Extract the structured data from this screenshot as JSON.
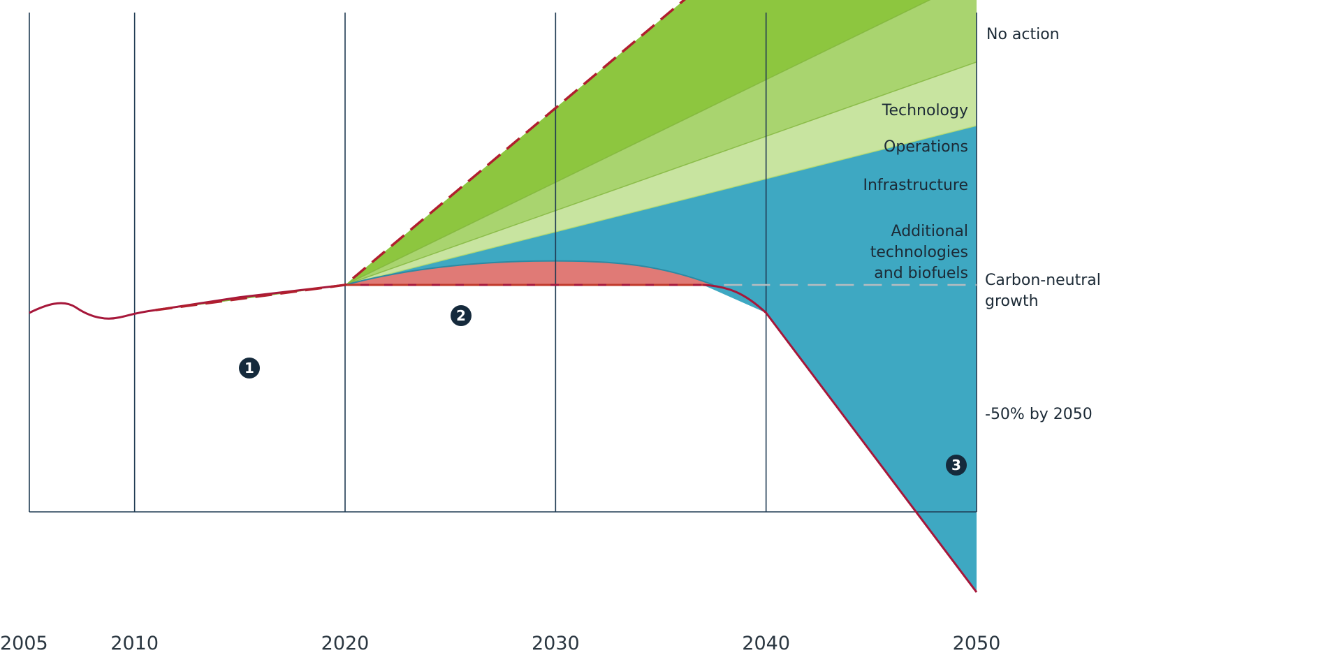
{
  "chart_data": {
    "type": "area",
    "x_ticks": [
      "2005",
      "2010",
      "2020",
      "2030",
      "2040",
      "2050"
    ],
    "xlim": [
      2005,
      2050
    ],
    "grid": "vertical lines at each tick",
    "series": [
      {
        "name": "No action",
        "color": "#b01e2e",
        "style": "dashed",
        "x": [
          2005,
          2010,
          2011,
          2020,
          2030,
          2040,
          2050
        ],
        "y": [
          100,
          100,
          100.5,
          105,
          134,
          167,
          200
        ]
      },
      {
        "name": "-50% by 2050",
        "color": "#a6173a",
        "style": "solid",
        "x": [
          2005,
          2006.5,
          2007.5,
          2008.5,
          2010,
          2020,
          2037,
          2040,
          2050
        ],
        "y": [
          100,
          101.5,
          100,
          99,
          100,
          105,
          105,
          100,
          50
        ]
      },
      {
        "name": "Carbon-neutral growth",
        "color": "#b6bcc0",
        "style": "dashed",
        "x": [
          2020,
          2050
        ],
        "y": [
          105,
          105
        ]
      }
    ],
    "bands": [
      {
        "name": "Technology",
        "color": "#8dc63f"
      },
      {
        "name": "Operations",
        "color": "#a9d46f"
      },
      {
        "name": "Infrastructure",
        "color": "#c8e4a0"
      },
      {
        "name": "Additional technologies and biofuels",
        "color": "#3ea8c2"
      },
      {
        "name": "",
        "color": "#e07a76"
      }
    ],
    "annotations": [
      {
        "text": "No action",
        "lines": [
          "No action"
        ]
      },
      {
        "text": "Technology",
        "lines": [
          "Technology"
        ]
      },
      {
        "text": "Operations",
        "lines": [
          "Operations"
        ]
      },
      {
        "text": "Infrastructure",
        "lines": [
          "Infrastructure"
        ]
      },
      {
        "text": "Additional technologies and biofuels",
        "lines": [
          "Additional",
          "technologies",
          "and biofuels"
        ]
      },
      {
        "text": "Carbon-neutral growth",
        "lines": [
          "Carbon-neutral",
          "growth"
        ]
      },
      {
        "text": "-50% by 2050",
        "lines": [
          "-50% by 2050"
        ]
      }
    ],
    "markers": [
      "1",
      "2",
      "3"
    ]
  }
}
